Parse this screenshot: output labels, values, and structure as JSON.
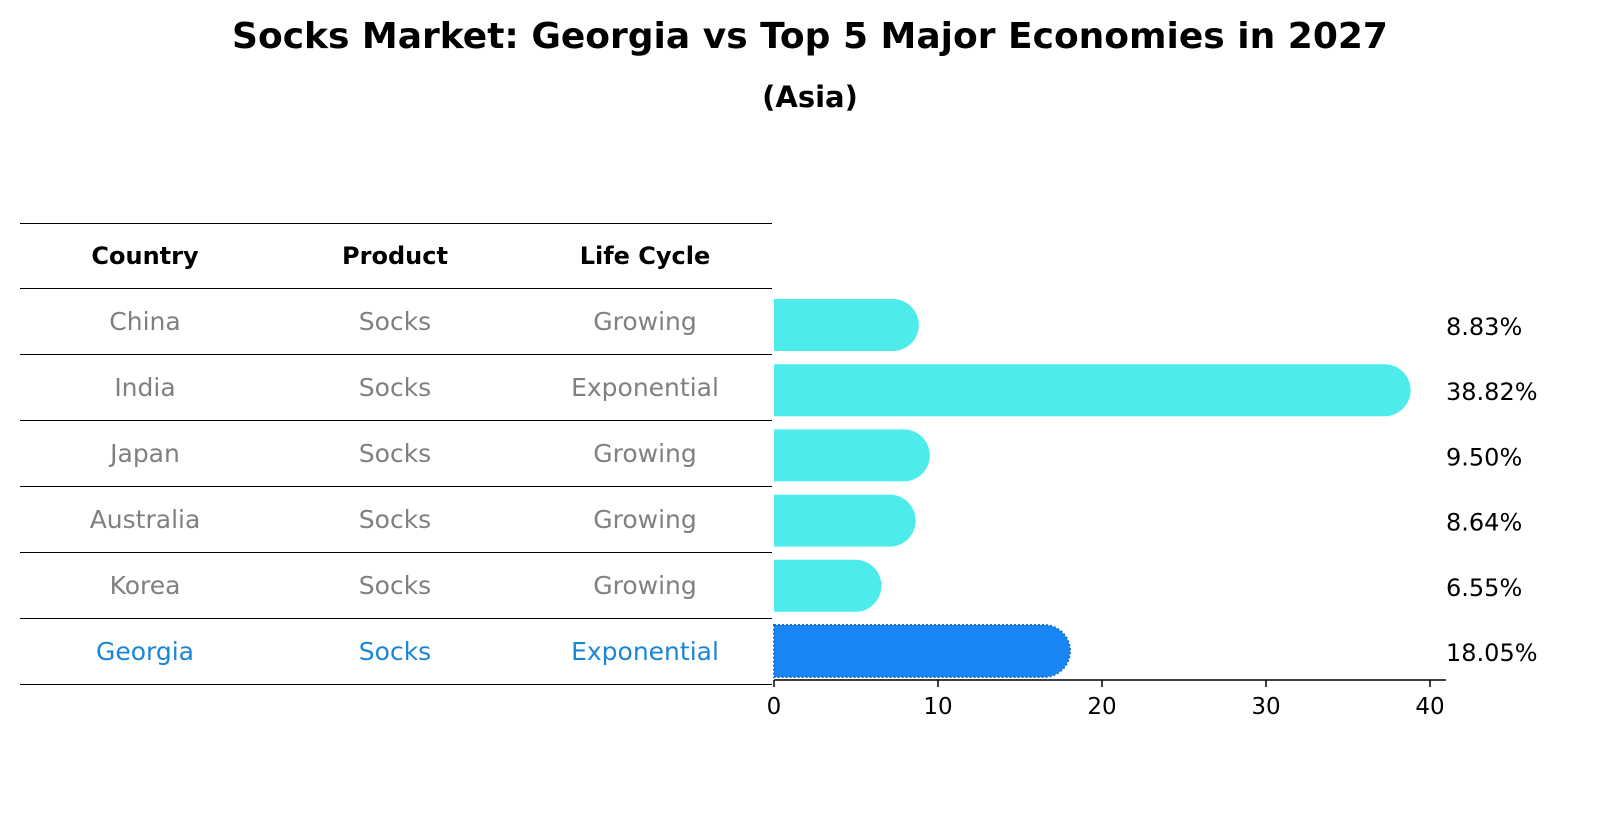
{
  "title": "Socks Market: Georgia vs Top 5 Major Economies in 2027",
  "subtitle": "(Asia)",
  "table": {
    "headers": [
      "Country",
      "Product",
      "Life Cycle"
    ],
    "rows": [
      {
        "country": "China",
        "product": "Socks",
        "life_cycle": "Growing"
      },
      {
        "country": "India",
        "product": "Socks",
        "life_cycle": "Exponential"
      },
      {
        "country": "Japan",
        "product": "Socks",
        "life_cycle": "Growing"
      },
      {
        "country": "Australia",
        "product": "Socks",
        "life_cycle": "Growing"
      },
      {
        "country": "Korea",
        "product": "Socks",
        "life_cycle": "Growing"
      },
      {
        "country": "Georgia",
        "product": "Socks",
        "life_cycle": "Exponential"
      }
    ]
  },
  "chart_data": {
    "type": "bar",
    "orientation": "horizontal",
    "categories": [
      "China",
      "India",
      "Japan",
      "Australia",
      "Korea",
      "Georgia"
    ],
    "values": [
      8.83,
      38.82,
      9.5,
      8.64,
      6.55,
      18.05
    ],
    "value_labels": [
      "8.83%",
      "38.82%",
      "9.50%",
      "8.64%",
      "6.55%",
      "18.05%"
    ],
    "xlim": [
      0,
      40
    ],
    "xticks": [
      0,
      10,
      20,
      30,
      40
    ],
    "grid": false,
    "highlight": "Georgia",
    "colors": {
      "bar": "#4deceb",
      "highlight": "#1a86f5",
      "highlight_text": "#1a86d8"
    }
  }
}
